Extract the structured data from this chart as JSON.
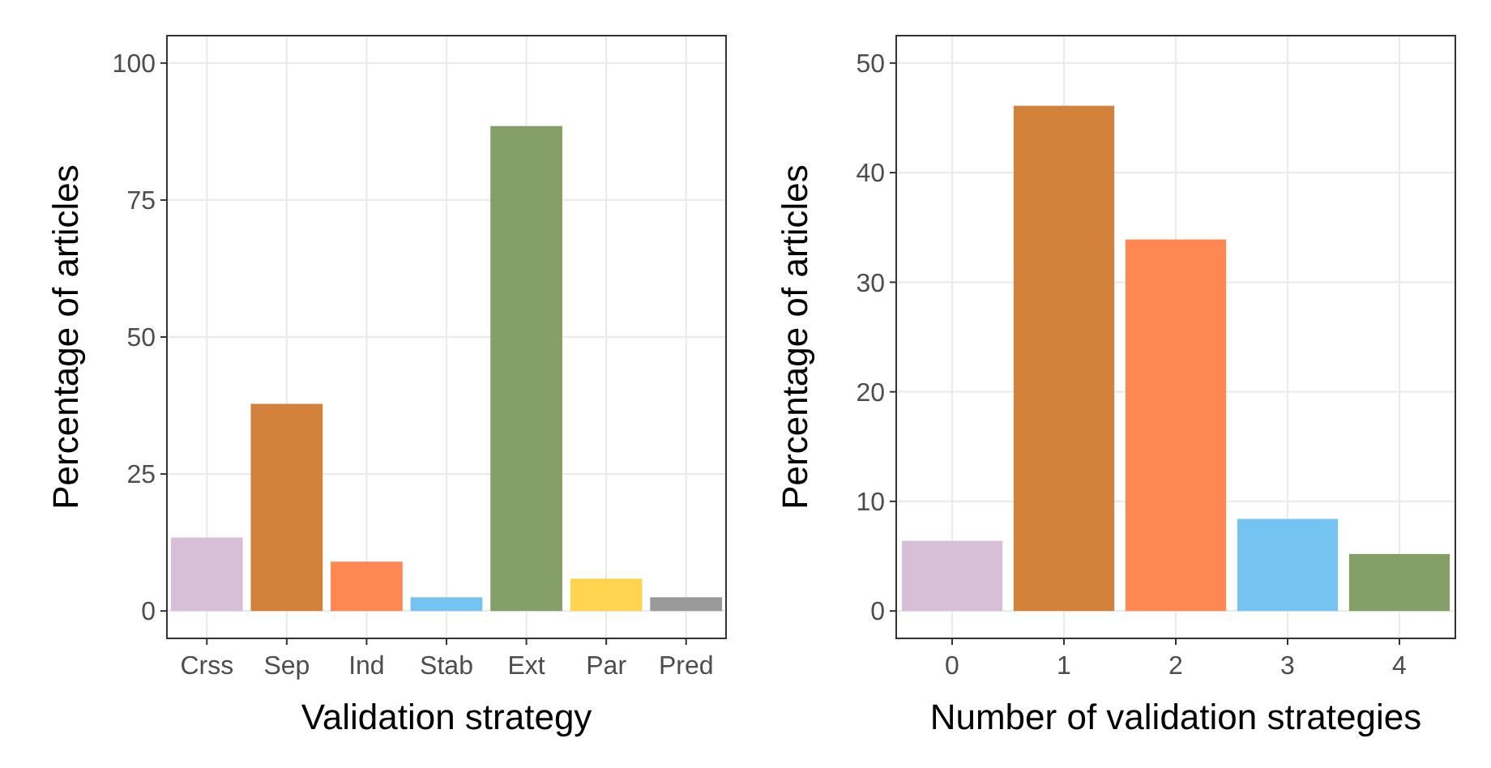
{
  "chart_data": [
    {
      "type": "bar",
      "xlabel": "Validation strategy",
      "ylabel": "Percentage of articles",
      "categories": [
        "Crss",
        "Sep",
        "Ind",
        "Stab",
        "Ext",
        "Par",
        "Pred"
      ],
      "values": [
        13.4,
        37.8,
        9,
        2.5,
        88.5,
        5.9,
        2.5
      ],
      "colors": [
        "#d8bfd8",
        "#d2823a",
        "#ff8752",
        "#75c3f0",
        "#84a068",
        "#ffd54f",
        "#999999"
      ],
      "ylim": [
        -5,
        105
      ],
      "yticks": [
        0,
        25,
        50,
        75,
        100
      ],
      "grid": true
    },
    {
      "type": "bar",
      "xlabel": "Number of validation strategies",
      "ylabel": "Percentage of articles",
      "categories": [
        "0",
        "1",
        "2",
        "3",
        "4"
      ],
      "values": [
        6.4,
        46.1,
        33.9,
        8.4,
        5.2
      ],
      "colors": [
        "#d8bfd8",
        "#d2823a",
        "#ff8752",
        "#75c3f0",
        "#84a068"
      ],
      "ylim": [
        -2.5,
        52.5
      ],
      "yticks": [
        0,
        10,
        20,
        30,
        40,
        50
      ],
      "grid": true
    }
  ]
}
